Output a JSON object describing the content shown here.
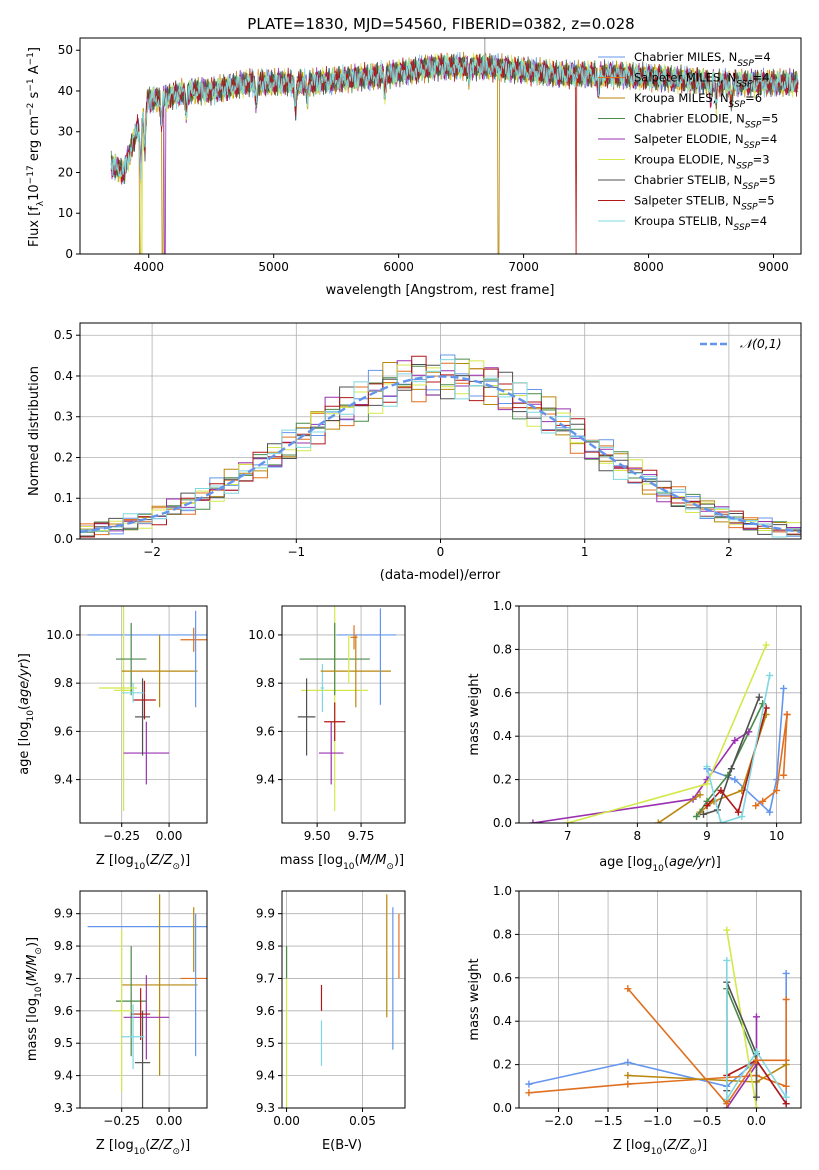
{
  "figure": {
    "title": "PLATE=1830, MJD=54560, FIBERID=0382, z=0.028"
  },
  "series_styles": [
    {
      "name": "Chabrier MILES",
      "nssp": "4",
      "color": "#6495ed"
    },
    {
      "name": "Salpeter MILES",
      "nssp": "4",
      "color": "#e07020"
    },
    {
      "name": "Kroupa MILES",
      "nssp": "6",
      "color": "#b8860b"
    },
    {
      "name": "Chabrier ELODIE",
      "nssp": "5",
      "color": "#4a8a4a"
    },
    {
      "name": "Salpeter ELODIE",
      "nssp": "4",
      "color": "#9a30b0"
    },
    {
      "name": "Kroupa ELODIE",
      "nssp": "3",
      "color": "#d4e84a"
    },
    {
      "name": "Chabrier STELIB",
      "nssp": "5",
      "color": "#505050"
    },
    {
      "name": "Salpeter STELIB",
      "nssp": "5",
      "color": "#b01818"
    },
    {
      "name": "Kroupa STELIB",
      "nssp": "4",
      "color": "#7fd8e0"
    }
  ],
  "chart_data": [
    {
      "id": "spectrum",
      "type": "line",
      "title": "PLATE=1830, MJD=54560, FIBERID=0382, z=0.028",
      "xlabel": "wavelength [Angstrom, rest frame]",
      "ylabel": "Flux [f_λ 10^-17 erg cm^-2 s^-1 A^-1]",
      "xlim": [
        3450,
        9220
      ],
      "ylim": [
        0,
        53
      ],
      "xticks": [
        4000,
        5000,
        6000,
        7000,
        8000,
        9000
      ],
      "yticks": [
        0,
        10,
        20,
        30,
        40,
        50
      ],
      "legend_position": "top-right",
      "legend_entries": [
        "Chabrier MILES, N_SSP=4",
        "Salpeter MILES, N_SSP=4",
        "Kroupa MILES, N_SSP=6",
        "Chabrier ELODIE, N_SSP=5",
        "Salpeter ELODIE, N_SSP=4",
        "Kroupa ELODIE, N_SSP=3",
        "Chabrier STELIB, N_SSP=5",
        "Salpeter STELIB, N_SSP=5",
        "Kroupa STELIB, N_SSP=4"
      ],
      "continuum": {
        "x": [
          3700,
          3800,
          3900,
          4000,
          4100,
          4300,
          4500,
          4800,
          5000,
          5300,
          5600,
          5900,
          6300,
          6700,
          7000,
          7300,
          7700,
          8200,
          8600,
          9000,
          9200
        ],
        "y": [
          22,
          20,
          30,
          38,
          38,
          40,
          40,
          42,
          42,
          42,
          43,
          44,
          46,
          46,
          45,
          44,
          44,
          43,
          42,
          42,
          42
        ]
      },
      "absorption_lines": [
        {
          "x": 3934,
          "depth": 12
        },
        {
          "x": 3969,
          "depth": 10
        },
        {
          "x": 4102,
          "depth": 6
        },
        {
          "x": 4300,
          "depth": 6
        },
        {
          "x": 4861,
          "depth": 5
        },
        {
          "x": 5175,
          "depth": 7
        },
        {
          "x": 5270,
          "depth": 4
        },
        {
          "x": 5890,
          "depth": 5
        },
        {
          "x": 6563,
          "depth": 3
        },
        {
          "x": 7600,
          "depth": 4
        },
        {
          "x": 8498,
          "depth": 4
        },
        {
          "x": 8542,
          "depth": 5
        },
        {
          "x": 8662,
          "depth": 5
        }
      ],
      "model_dropouts": [
        {
          "series": "Kroupa MILES",
          "x": 3930
        },
        {
          "series": "Kroupa ELODIE",
          "x": 3945
        },
        {
          "series": "Kroupa MILES",
          "x": 4110
        },
        {
          "series": "Salpeter ELODIE",
          "x": 4130
        },
        {
          "series": "Kroupa MILES",
          "x": 6800
        },
        {
          "series": "Salpeter STELIB",
          "x": 7420
        }
      ]
    },
    {
      "id": "residuals",
      "type": "histogram",
      "xlabel": "(data-model)/error",
      "ylabel": "Normed distribution",
      "xlim": [
        -2.5,
        2.5
      ],
      "ylim": [
        0,
        0.53
      ],
      "xticks": [
        -2,
        -1,
        0,
        1,
        2
      ],
      "yticks": [
        0.0,
        0.1,
        0.2,
        0.3,
        0.4,
        0.5
      ],
      "grid": true,
      "bins": {
        "start": -2.5,
        "width": 0.1,
        "count": 50
      },
      "reference": {
        "name": "𝒩(0,1)",
        "mean": 0,
        "sigma": 1,
        "color": "#6495ed"
      },
      "legend_position": "top-right"
    },
    {
      "id": "age-vs-Z",
      "type": "errorbar",
      "xlabel": "Z [log10(Z/Z⊙)]",
      "ylabel": "age  [log10(age/yr)]",
      "xlim": [
        -0.47,
        0.2
      ],
      "ylim": [
        9.22,
        10.12
      ],
      "xticks": [
        -0.25,
        0.0
      ],
      "yticks": [
        9.4,
        9.6,
        9.8,
        10.0
      ],
      "grid": true,
      "points": [
        {
          "series": "Chabrier MILES",
          "x": -0.03,
          "y": 10.0,
          "xerr": 0.4,
          "yerr": 0.0
        },
        {
          "series": "Salpeter MILES",
          "x": 0.13,
          "y": 9.98,
          "xerr": 0.07,
          "yerr": 0.05
        },
        {
          "series": "Kroupa ELODIE",
          "x": -0.24,
          "y": 9.77,
          "xerr": 0.05,
          "yerr": 0.5
        },
        {
          "series": "Chabrier ELODIE",
          "x": -0.2,
          "y": 9.9,
          "xerr": 0.08,
          "yerr": 0.15
        },
        {
          "series": "Salpeter ELODIE",
          "x": -0.12,
          "y": 9.51,
          "xerr": 0.12,
          "yerr": 0.13
        },
        {
          "series": "Chabrier STELIB",
          "x": -0.14,
          "y": 9.66,
          "xerr": 0.04,
          "yerr": 0.16
        },
        {
          "series": "Salpeter STELIB",
          "x": -0.13,
          "y": 9.73,
          "xerr": 0.06,
          "yerr": 0.08
        },
        {
          "series": "Kroupa STELIB",
          "x": -0.19,
          "y": 9.76,
          "xerr": 0.06,
          "yerr": 0.04
        },
        {
          "series": "Kroupa MILES",
          "x": -0.05,
          "y": 9.85,
          "xerr": 0.2,
          "yerr": 0.15
        },
        {
          "series": "Chabrier MILES",
          "x": 0.14,
          "y": 9.9,
          "xerr": 0.0,
          "yerr": 0.2
        },
        {
          "series": "Kroupa ELODIE",
          "x": -0.27,
          "y": 9.78,
          "xerr": 0.1,
          "yerr": 0.0
        }
      ]
    },
    {
      "id": "age-vs-mass",
      "type": "errorbar",
      "xlabel": "mass [log10(M/M⊙)]",
      "ylabel": "",
      "xlim": [
        9.3,
        10.0
      ],
      "ylim": [
        9.22,
        10.12
      ],
      "xticks": [
        9.5,
        9.75
      ],
      "yticks": [
        9.4,
        9.6,
        9.8,
        10.0
      ],
      "grid": true,
      "points": [
        {
          "series": "Chabrier MILES",
          "x": 9.78,
          "y": 10.0,
          "xerr": 0.17,
          "yerr": 0.0
        },
        {
          "series": "Salpeter MILES",
          "x": 9.71,
          "y": 9.99,
          "xerr": 0.02,
          "yerr": 0.05
        },
        {
          "series": "Kroupa ELODIE",
          "x": 9.6,
          "y": 9.77,
          "xerr": 0.19,
          "yerr": 0.5
        },
        {
          "series": "Chabrier ELODIE",
          "x": 9.6,
          "y": 9.9,
          "xerr": 0.2,
          "yerr": 0.15
        },
        {
          "series": "Salpeter ELODIE",
          "x": 9.58,
          "y": 9.51,
          "xerr": 0.07,
          "yerr": 0.13
        },
        {
          "series": "Chabrier STELIB",
          "x": 9.44,
          "y": 9.66,
          "xerr": 0.05,
          "yerr": 0.16
        },
        {
          "series": "Salpeter STELIB",
          "x": 9.6,
          "y": 9.64,
          "xerr": 0.06,
          "yerr": 0.08
        },
        {
          "series": "Kroupa STELIB",
          "x": 9.53,
          "y": 9.78,
          "xerr": 0.01,
          "yerr": 0.1
        },
        {
          "series": "Kroupa MILES",
          "x": 9.72,
          "y": 9.85,
          "xerr": 0.2,
          "yerr": 0.15
        },
        {
          "series": "Chabrier MILES",
          "x": 9.86,
          "y": 9.91,
          "xerr": 0.0,
          "yerr": 0.2
        },
        {
          "series": "Kroupa ELODIE",
          "x": 9.68,
          "y": 9.9,
          "xerr": 0.0,
          "yerr": 0.1
        }
      ]
    },
    {
      "id": "weight-vs-age",
      "type": "line",
      "xlabel": "age  [log10(age/yr)]",
      "ylabel": "mass weight",
      "xlim": [
        6.3,
        10.35
      ],
      "ylim": [
        0,
        1.0
      ],
      "xticks": [
        7,
        8,
        9,
        10
      ],
      "yticks": [
        0.0,
        0.2,
        0.4,
        0.6,
        0.8,
        1.0
      ],
      "grid": true,
      "series": [
        {
          "name": "Chabrier MILES",
          "x": [
            9.0,
            9.4,
            9.9,
            10.0,
            10.1
          ],
          "y": [
            0.25,
            0.2,
            0.05,
            0.2,
            0.62
          ]
        },
        {
          "name": "Salpeter MILES",
          "x": [
            9.7,
            9.8,
            10.0,
            10.15
          ],
          "y": [
            0.08,
            0.1,
            0.15,
            0.5
          ]
        },
        {
          "name": "Kroupa MILES",
          "x": [
            8.9,
            9.1,
            9.5,
            9.85
          ],
          "y": [
            0.05,
            0.1,
            0.15,
            0.5
          ]
        },
        {
          "name": "Chabrier ELODIE",
          "x": [
            8.85,
            9.0,
            9.3,
            9.8
          ],
          "y": [
            0.03,
            0.1,
            0.22,
            0.55
          ]
        },
        {
          "name": "Salpeter ELODIE",
          "x": [
            6.5,
            8.8,
            9.0,
            9.4,
            9.6
          ],
          "y": [
            0.0,
            0.11,
            0.2,
            0.38,
            0.42
          ]
        },
        {
          "name": "Kroupa ELODIE",
          "x": [
            7.0,
            9.0,
            9.85
          ],
          "y": [
            0.0,
            0.18,
            0.82
          ]
        },
        {
          "name": "Chabrier STELIB",
          "x": [
            8.95,
            9.15,
            9.35,
            9.75
          ],
          "y": [
            0.04,
            0.06,
            0.25,
            0.58
          ]
        },
        {
          "name": "Salpeter STELIB",
          "x": [
            9.0,
            9.2,
            9.45,
            9.85
          ],
          "y": [
            0.08,
            0.15,
            0.05,
            0.53
          ]
        },
        {
          "name": "Kroupa STELIB",
          "x": [
            9.0,
            9.2,
            9.5,
            9.9
          ],
          "y": [
            0.26,
            0.0,
            0.03,
            0.68
          ]
        },
        {
          "name": "Kroupa MILES",
          "x": [
            8.3,
            8.9
          ],
          "y": [
            0.0,
            0.13
          ]
        },
        {
          "name": "Salpeter MILES",
          "x": [
            10.1,
            10.15
          ],
          "y": [
            0.22,
            0.5
          ]
        }
      ]
    },
    {
      "id": "mass-vs-Z",
      "type": "errorbar",
      "xlabel": "Z [log10(Z/Z⊙)]",
      "ylabel": "mass [log10(M/M⊙)]",
      "xlim": [
        -0.47,
        0.2
      ],
      "ylim": [
        9.3,
        9.97
      ],
      "xticks": [
        -0.25,
        0.0
      ],
      "yticks": [
        9.3,
        9.4,
        9.5,
        9.6,
        9.7,
        9.8,
        9.9
      ],
      "grid": true,
      "points": [
        {
          "series": "Chabrier MILES",
          "x": -0.03,
          "y": 9.86,
          "xerr": 0.4,
          "yerr": 0.0
        },
        {
          "series": "Salpeter MILES",
          "x": 0.13,
          "y": 9.7,
          "xerr": 0.07,
          "yerr": 0.0
        },
        {
          "series": "Kroupa MILES",
          "x": -0.05,
          "y": 9.68,
          "xerr": 0.2,
          "yerr": 0.28
        },
        {
          "series": "Chabrier ELODIE",
          "x": -0.2,
          "y": 9.63,
          "xerr": 0.08,
          "yerr": 0.17
        },
        {
          "series": "Salpeter ELODIE",
          "x": -0.12,
          "y": 9.58,
          "xerr": 0.12,
          "yerr": 0.13
        },
        {
          "series": "Kroupa ELODIE",
          "x": -0.25,
          "y": 9.6,
          "xerr": 0.05,
          "yerr": 0.25
        },
        {
          "series": "Chabrier STELIB",
          "x": -0.14,
          "y": 9.44,
          "xerr": 0.04,
          "yerr": 0.16
        },
        {
          "series": "Salpeter STELIB",
          "x": -0.15,
          "y": 9.59,
          "xerr": 0.05,
          "yerr": 0.08
        },
        {
          "series": "Kroupa STELIB",
          "x": -0.19,
          "y": 9.52,
          "xerr": 0.06,
          "yerr": 0.1
        },
        {
          "series": "Chabrier MILES",
          "x": 0.14,
          "y": 9.68,
          "xerr": 0.0,
          "yerr": 0.22
        },
        {
          "series": "Kroupa MILES",
          "x": 0.13,
          "y": 9.82,
          "xerr": 0.0,
          "yerr": 0.1
        }
      ]
    },
    {
      "id": "mass-vs-EBV",
      "type": "errorbar",
      "xlabel": "E(B-V)",
      "ylabel": "",
      "xlim": [
        -0.003,
        0.078
      ],
      "ylim": [
        9.3,
        9.97
      ],
      "xticks": [
        0.0,
        0.05
      ],
      "yticks": [
        9.3,
        9.4,
        9.5,
        9.6,
        9.7,
        9.8,
        9.9
      ],
      "grid": true,
      "points": [
        {
          "series": "Kroupa ELODIE",
          "x": 0.0,
          "y": 9.55,
          "xerr": 0.0,
          "yerr": 0.25
        },
        {
          "series": "Chabrier ELODIE",
          "x": 0.0,
          "y": 9.75,
          "xerr": 0.0,
          "yerr": 0.05
        },
        {
          "series": "Salpeter STELIB",
          "x": 0.023,
          "y": 9.64,
          "xerr": 0.0,
          "yerr": 0.04
        },
        {
          "series": "Kroupa STELIB",
          "x": 0.023,
          "y": 9.5,
          "xerr": 0.0,
          "yerr": 0.07
        },
        {
          "series": "Kroupa MILES",
          "x": 0.066,
          "y": 9.77,
          "xerr": 0.0,
          "yerr": 0.19
        },
        {
          "series": "Chabrier MILES",
          "x": 0.07,
          "y": 9.7,
          "xerr": 0.0,
          "yerr": 0.22
        },
        {
          "series": "Salpeter MILES",
          "x": 0.074,
          "y": 9.8,
          "xerr": 0.0,
          "yerr": 0.1
        }
      ]
    },
    {
      "id": "weight-vs-Z",
      "type": "line",
      "xlabel": "Z [log10(Z/Z⊙)]",
      "ylabel": "mass weight",
      "xlim": [
        -2.4,
        0.45
      ],
      "ylim": [
        0,
        1.0
      ],
      "xticks": [
        -2.0,
        -1.5,
        -1.0,
        -0.5,
        0.0
      ],
      "yticks": [
        0.0,
        0.2,
        0.4,
        0.6,
        0.8,
        1.0
      ],
      "grid": true,
      "series": [
        {
          "name": "Chabrier MILES",
          "x": [
            -2.3,
            -1.3,
            -0.3,
            0.0,
            0.3,
            0.3
          ],
          "y": [
            0.11,
            0.21,
            0.1,
            0.22,
            0.02,
            0.62
          ]
        },
        {
          "name": "Salpeter MILES",
          "x": [
            -2.3,
            -1.3,
            0.0,
            0.3,
            0.3
          ],
          "y": [
            0.07,
            0.11,
            0.15,
            0.1,
            0.5
          ]
        },
        {
          "name": "Kroupa MILES",
          "x": [
            -1.3,
            0.0,
            0.3
          ],
          "y": [
            0.15,
            0.12,
            0.2
          ]
        },
        {
          "name": "Chabrier ELODIE",
          "x": [
            -0.3,
            -0.3,
            0.0
          ],
          "y": [
            0.03,
            0.55,
            0.22
          ]
        },
        {
          "name": "Salpeter ELODIE",
          "x": [
            -0.3,
            0.0,
            0.0
          ],
          "y": [
            0.0,
            0.2,
            0.42
          ]
        },
        {
          "name": "Kroupa ELODIE",
          "x": [
            -0.3,
            0.0
          ],
          "y": [
            0.82,
            0.0
          ]
        },
        {
          "name": "Chabrier STELIB",
          "x": [
            -0.3,
            -0.3,
            0.0,
            0.0
          ],
          "y": [
            0.08,
            0.58,
            0.25,
            0.05
          ]
        },
        {
          "name": "Salpeter STELIB",
          "x": [
            -0.3,
            0.0,
            0.3
          ],
          "y": [
            0.15,
            0.22,
            0.02
          ]
        },
        {
          "name": "Kroupa STELIB",
          "x": [
            -0.3,
            -0.3,
            0.0,
            0.3
          ],
          "y": [
            0.68,
            0.04,
            0.26,
            0.05
          ]
        },
        {
          "name": "Salpeter MILES",
          "x": [
            -1.3,
            -0.3,
            0.0,
            0.3
          ],
          "y": [
            0.55,
            0.02,
            0.22,
            0.22
          ]
        }
      ]
    }
  ]
}
